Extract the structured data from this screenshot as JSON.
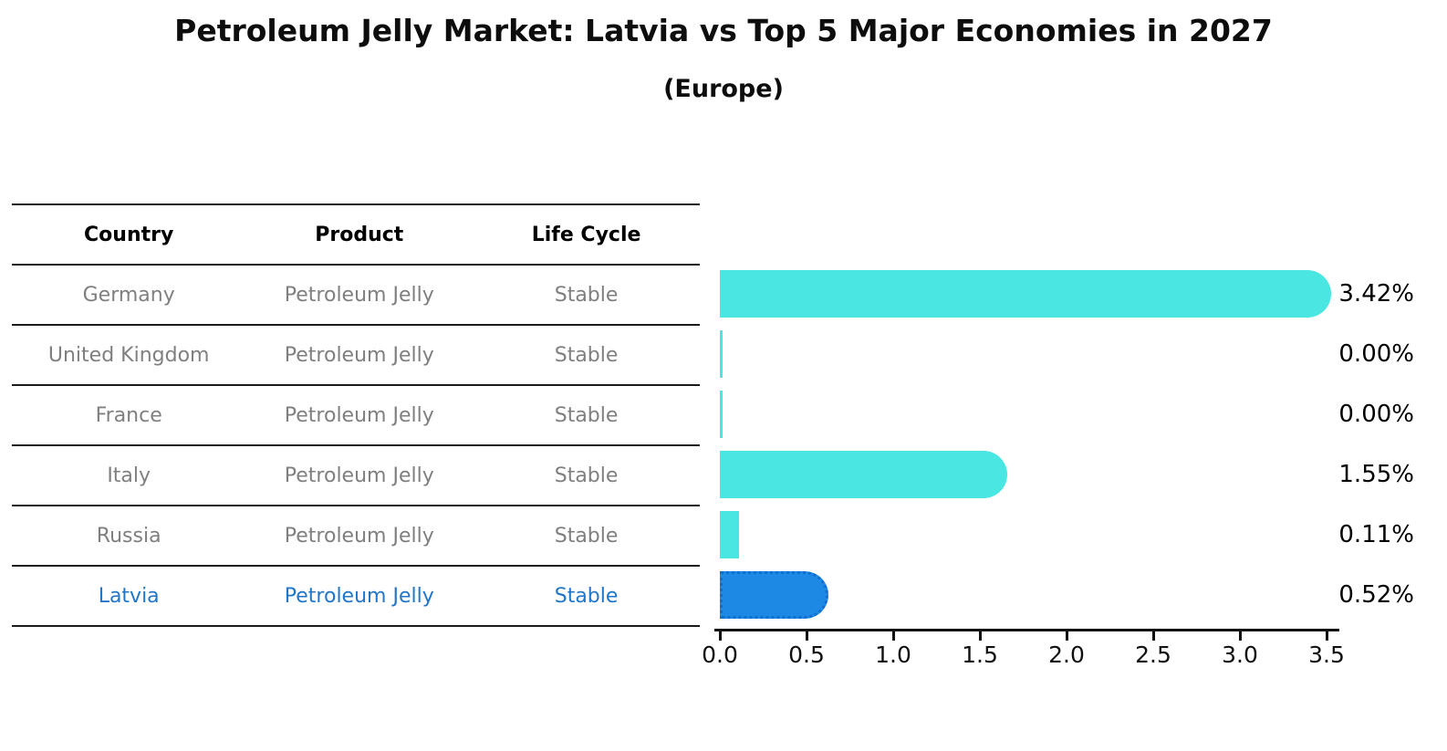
{
  "title": "Petroleum Jelly Market: Latvia vs Top 5 Major Economies in 2027",
  "subtitle": "(Europe)",
  "colors": {
    "bar_default": "#4ae6e2",
    "bar_highlight": "#1e88e5",
    "bar_highlight_edge": "#0f6fd0",
    "highlight_text": "#2176c7",
    "row_text": "#7f7f7f",
    "header_text": "#000000",
    "value_text": "#000000",
    "line": "#1a1a1a"
  },
  "table": {
    "headers": [
      "Country",
      "Product",
      "Life Cycle"
    ],
    "rows": [
      {
        "country": "Germany",
        "product": "Petroleum Jelly",
        "life_cycle": "Stable",
        "highlight": false
      },
      {
        "country": "United Kingdom",
        "product": "Petroleum Jelly",
        "life_cycle": "Stable",
        "highlight": false
      },
      {
        "country": "France",
        "product": "Petroleum Jelly",
        "life_cycle": "Stable",
        "highlight": false
      },
      {
        "country": "Italy",
        "product": "Petroleum Jelly",
        "life_cycle": "Stable",
        "highlight": false
      },
      {
        "country": "Russia",
        "product": "Petroleum Jelly",
        "life_cycle": "Stable",
        "highlight": true
      }
    ],
    "highlight_row": {
      "country": "Latvia",
      "product": "Petroleum Jelly",
      "life_cycle": "Stable"
    }
  },
  "chart_data": {
    "type": "bar",
    "orientation": "horizontal",
    "title": "Petroleum Jelly Market: Latvia vs Top 5 Major Economies in 2027 (Europe)",
    "categories": [
      "Germany",
      "United Kingdom",
      "France",
      "Italy",
      "Russia",
      "Latvia"
    ],
    "values": [
      3.42,
      0.0,
      0.0,
      1.55,
      0.11,
      0.52
    ],
    "value_labels": [
      "3.42%",
      "0.00%",
      "0.00%",
      "1.55%",
      "0.11%",
      "0.52%"
    ],
    "highlight_index": 5,
    "xlim": [
      0,
      3.5
    ],
    "x_ticks": [
      0.0,
      0.5,
      1.0,
      1.5,
      2.0,
      2.5,
      3.0,
      3.5
    ],
    "x_tick_labels": [
      "0.0",
      "0.5",
      "1.0",
      "1.5",
      "2.0",
      "2.5",
      "3.0",
      "3.5"
    ],
    "grid": false,
    "legend": false
  }
}
